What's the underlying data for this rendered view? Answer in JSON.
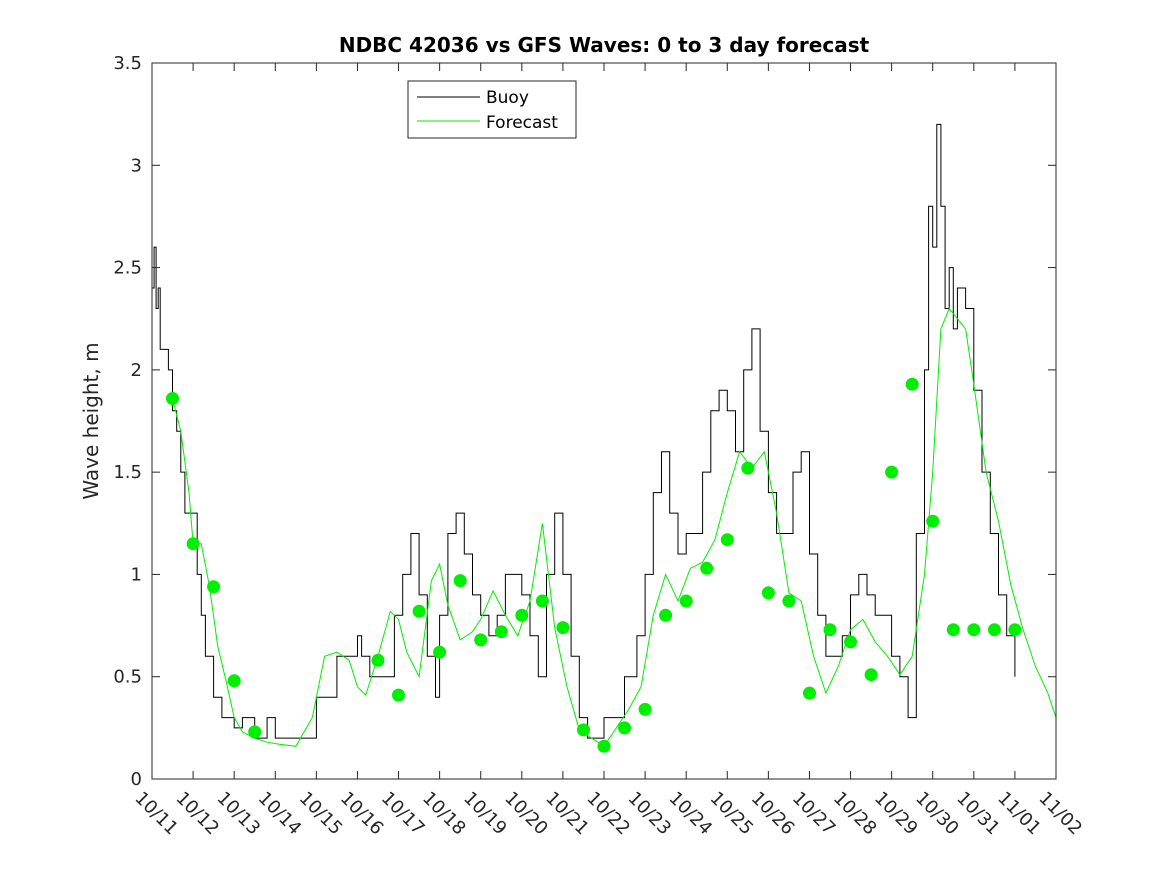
{
  "chart_data": {
    "type": "line",
    "title": "NDBC 42036 vs GFS Waves: 0 to 3 day forecast",
    "xlabel": "",
    "ylabel": "Wave height, m",
    "ylim": [
      0,
      3.5
    ],
    "xlim": [
      0,
      22
    ],
    "yticks": [
      0,
      0.5,
      1,
      1.5,
      2,
      2.5,
      3,
      3.5
    ],
    "ytick_labels": [
      "0",
      "0.5",
      "1",
      "1.5",
      "2",
      "2.5",
      "3",
      "3.5"
    ],
    "xtick_labels": [
      "10/11",
      "10/12",
      "10/13",
      "10/14",
      "10/15",
      "10/16",
      "10/17",
      "10/18",
      "10/19",
      "10/20",
      "10/21",
      "10/22",
      "10/23",
      "10/24",
      "10/25",
      "10/26",
      "10/27",
      "10/28",
      "10/29",
      "10/30",
      "10/31",
      "11/01",
      "11/02"
    ],
    "legend": {
      "location": "top-left",
      "entries": [
        "Buoy",
        "Forecast"
      ]
    },
    "colors": {
      "buoy": "#000000",
      "forecast": "#00ee00"
    },
    "series": [
      {
        "name": "Buoy",
        "x": [
          0,
          0.05,
          0.1,
          0.15,
          0.2,
          0.3,
          0.4,
          0.5,
          0.6,
          0.7,
          0.8,
          0.9,
          1.0,
          1.1,
          1.2,
          1.3,
          1.5,
          1.7,
          1.9,
          2.0,
          2.2,
          2.5,
          2.8,
          3.0,
          3.5,
          4.0,
          4.5,
          5.0,
          5.1,
          5.3,
          5.5,
          5.7,
          5.9,
          6.1,
          6.3,
          6.5,
          6.7,
          6.9,
          7.0,
          7.2,
          7.4,
          7.6,
          7.8,
          8.0,
          8.2,
          8.4,
          8.6,
          8.8,
          9.0,
          9.2,
          9.4,
          9.6,
          9.8,
          10.0,
          10.2,
          10.4,
          10.6,
          10.8,
          11.0,
          11.2,
          11.5,
          11.8,
          12.0,
          12.2,
          12.4,
          12.6,
          12.8,
          13.0,
          13.2,
          13.4,
          13.6,
          13.8,
          14.0,
          14.2,
          14.4,
          14.6,
          14.8,
          15.0,
          15.2,
          15.4,
          15.6,
          15.8,
          16.0,
          16.2,
          16.4,
          16.6,
          16.8,
          17.0,
          17.2,
          17.4,
          17.6,
          17.8,
          18.0,
          18.2,
          18.4,
          18.6,
          18.8,
          18.9,
          19.0,
          19.1,
          19.2,
          19.3,
          19.4,
          19.5,
          19.6,
          19.8,
          20.0,
          20.2,
          20.4,
          20.6,
          20.8,
          21.0
        ],
        "values": [
          2.4,
          2.6,
          2.3,
          2.4,
          2.1,
          2.1,
          2.0,
          1.8,
          1.7,
          1.5,
          1.3,
          1.3,
          1.3,
          1.0,
          0.8,
          0.6,
          0.4,
          0.3,
          0.3,
          0.25,
          0.3,
          0.2,
          0.3,
          0.2,
          0.2,
          0.4,
          0.6,
          0.7,
          0.6,
          0.5,
          0.5,
          0.5,
          0.8,
          1.0,
          1.2,
          0.9,
          0.6,
          0.4,
          0.8,
          1.2,
          1.3,
          1.1,
          0.9,
          0.8,
          0.7,
          0.8,
          1.0,
          1.0,
          0.9,
          0.7,
          0.5,
          1.0,
          1.3,
          1.0,
          0.6,
          0.3,
          0.2,
          0.2,
          0.3,
          0.3,
          0.5,
          0.7,
          1.0,
          1.4,
          1.6,
          1.3,
          1.1,
          1.2,
          1.2,
          1.5,
          1.8,
          1.9,
          1.8,
          1.6,
          2.0,
          2.2,
          1.7,
          1.4,
          1.2,
          1.2,
          1.5,
          1.6,
          1.1,
          0.8,
          0.6,
          0.6,
          0.7,
          0.9,
          1.0,
          0.9,
          0.8,
          0.8,
          0.6,
          0.5,
          0.3,
          1.2,
          2.0,
          2.8,
          2.6,
          3.2,
          2.8,
          2.3,
          2.5,
          2.2,
          2.4,
          2.3,
          1.9,
          1.5,
          1.2,
          0.9,
          0.7,
          0.5
        ]
      },
      {
        "name": "Forecast",
        "x": [
          0.5,
          0.7,
          0.9,
          1.0,
          1.2,
          1.4,
          1.6,
          1.8,
          2.0,
          2.2,
          2.5,
          2.8,
          3.1,
          3.5,
          3.9,
          4.2,
          4.5,
          4.8,
          5.0,
          5.2,
          5.5,
          5.8,
          6.0,
          6.2,
          6.5,
          6.8,
          7.0,
          7.2,
          7.5,
          7.8,
          8.0,
          8.3,
          8.6,
          8.9,
          9.2,
          9.5,
          9.8,
          10.1,
          10.4,
          10.7,
          11.0,
          11.3,
          11.6,
          11.9,
          12.2,
          12.5,
          12.8,
          13.1,
          13.4,
          13.7,
          14.0,
          14.3,
          14.6,
          14.9,
          15.2,
          15.5,
          15.8,
          16.1,
          16.4,
          16.7,
          17.0,
          17.3,
          17.6,
          17.9,
          18.2,
          18.5,
          18.8,
          19.0,
          19.2,
          19.4,
          19.6,
          19.8,
          20.0,
          20.3,
          20.6,
          20.9,
          21.2,
          21.5,
          21.8,
          22.0
        ],
        "values": [
          1.86,
          1.7,
          1.4,
          1.15,
          1.15,
          0.94,
          0.65,
          0.48,
          0.3,
          0.23,
          0.2,
          0.18,
          0.17,
          0.16,
          0.3,
          0.6,
          0.62,
          0.58,
          0.45,
          0.41,
          0.6,
          0.82,
          0.78,
          0.62,
          0.5,
          0.97,
          1.05,
          0.85,
          0.68,
          0.72,
          0.78,
          0.92,
          0.8,
          0.7,
          0.87,
          1.25,
          0.74,
          0.45,
          0.24,
          0.2,
          0.16,
          0.25,
          0.34,
          0.45,
          0.8,
          1.0,
          0.87,
          1.03,
          1.06,
          1.17,
          1.4,
          1.6,
          1.52,
          1.6,
          1.3,
          0.91,
          0.87,
          0.6,
          0.42,
          0.55,
          0.73,
          0.78,
          0.67,
          0.6,
          0.51,
          0.6,
          1.0,
          1.5,
          2.2,
          2.3,
          2.25,
          2.2,
          1.93,
          1.5,
          1.26,
          0.95,
          0.73,
          0.55,
          0.42,
          0.3
        ]
      }
    ],
    "markers": {
      "name": "Forecast markers",
      "x": [
        0.5,
        1.0,
        1.5,
        2.0,
        2.5,
        5.5,
        6.0,
        6.5,
        7.0,
        7.5,
        8.0,
        8.5,
        9.0,
        9.5,
        10.0,
        10.5,
        11.0,
        11.5,
        12.0,
        12.5,
        13.0,
        13.5,
        14.0,
        14.5,
        15.0,
        15.5,
        16.0,
        16.5,
        17.0,
        17.5,
        18.0,
        18.5,
        19.0,
        19.5,
        20.0,
        20.5,
        21.0
      ],
      "values": [
        1.86,
        1.15,
        0.94,
        0.48,
        0.23,
        0.58,
        0.41,
        0.82,
        0.62,
        0.97,
        0.68,
        0.72,
        0.8,
        0.87,
        0.74,
        0.24,
        0.16,
        0.25,
        0.34,
        0.8,
        0.87,
        1.03,
        1.17,
        1.52,
        0.91,
        0.87,
        0.42,
        0.73,
        0.67,
        0.51,
        1.5,
        1.93,
        1.26,
        0.73,
        0.73,
        0.73,
        0.73
      ]
    }
  }
}
